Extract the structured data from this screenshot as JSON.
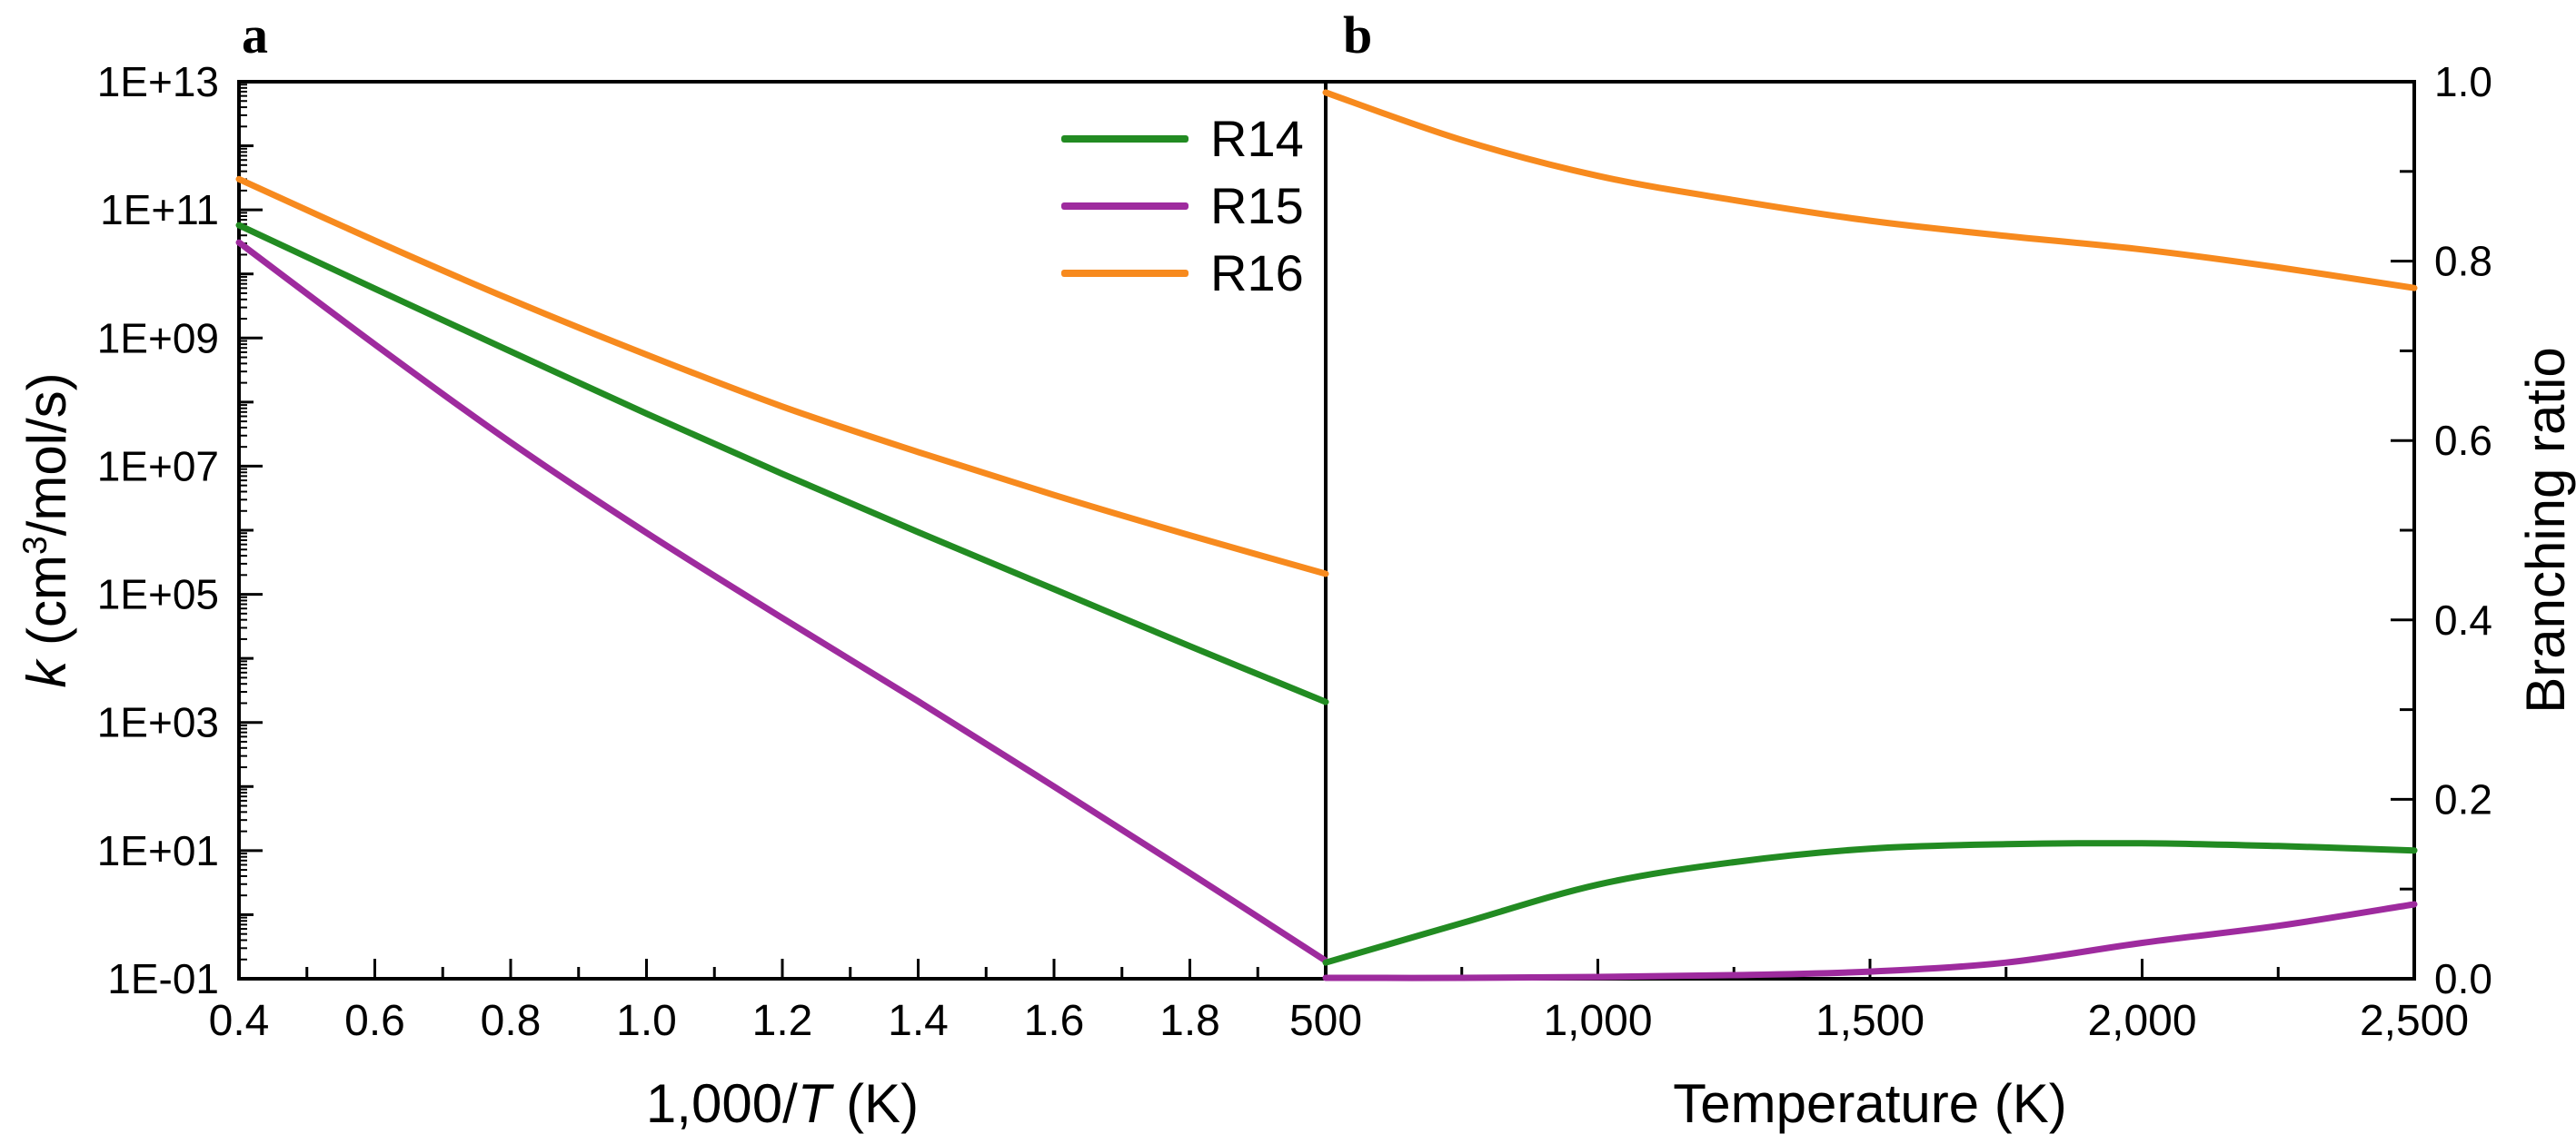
{
  "figure": {
    "background": "#ffffff",
    "axis_color": "#000000",
    "text_color": "#000000"
  },
  "panel_a": {
    "letter": "a",
    "xlabel": {
      "pre": "1,000/",
      "italic": "T",
      "post": " (K)"
    },
    "ylabel": {
      "k": "k",
      "mid": " (cm",
      "sup": "3",
      "end": "/mol/s)"
    }
  },
  "panel_b": {
    "letter": "b",
    "xlabel": "Temperature (K)",
    "ylabel": "Branching ratio"
  },
  "legend": {
    "position": "top-right-of-panel-a",
    "items": [
      {
        "label": "R14",
        "color": "#228B22"
      },
      {
        "label": "R15",
        "color": "#9E2B9E"
      },
      {
        "label": "R16",
        "color": "#F78A1E"
      }
    ]
  },
  "chart_data": [
    {
      "id": "panel_a",
      "type": "line",
      "title": "a",
      "xlabel": "1,000/T (K)",
      "ylabel": "k (cm³/mol/s)",
      "x_axis": {
        "lim": [
          0.4,
          2.0
        ],
        "major_tick_step": 0.2,
        "minor_tick_step": 0.1,
        "tick_values": [
          0.4,
          0.6,
          0.8,
          1.0,
          1.2,
          1.4,
          1.6,
          1.8
        ],
        "tick_labels": [
          "0.4",
          "0.6",
          "0.8",
          "1.0",
          "1.2",
          "1.4",
          "1.6",
          "1.8"
        ]
      },
      "y_axis": {
        "scale": "log10",
        "side": "left",
        "lim_exponents": [
          -1,
          13
        ],
        "tick_exponents": [
          13,
          11,
          9,
          7,
          5,
          3,
          1,
          -1
        ],
        "tick_labels": [
          "1E+13",
          "1E+11",
          "1E+09",
          "1E+07",
          "1E+05",
          "1E+03",
          "1E+01",
          "1E-01"
        ],
        "minor_log_ticks": true
      },
      "grid": false,
      "legend_position": "upper right",
      "x": [
        0.4,
        0.6,
        0.8,
        1.0,
        1.2,
        1.4,
        1.6,
        1.8,
        2.0
      ],
      "series": [
        {
          "name": "R14",
          "color": "#228B22",
          "log10_k": [
            10.76,
            9.77,
            8.79,
            7.82,
            6.88,
            5.97,
            5.08,
            4.19,
            3.32
          ]
        },
        {
          "name": "R15",
          "color": "#9E2B9E",
          "log10_k": [
            10.49,
            8.9,
            7.37,
            5.96,
            4.63,
            3.33,
            2.0,
            0.65,
            -0.72
          ]
        },
        {
          "name": "R16",
          "color": "#F78A1E",
          "log10_k": [
            11.48,
            10.52,
            9.6,
            8.74,
            7.93,
            7.22,
            6.55,
            5.92,
            5.32
          ]
        }
      ]
    },
    {
      "id": "panel_b",
      "type": "line",
      "title": "b",
      "xlabel": "Temperature (K)",
      "ylabel": "Branching ratio",
      "x_axis": {
        "lim": [
          500,
          2500
        ],
        "major_tick_step": 500,
        "minor_tick_step": 250,
        "tick_values": [
          500,
          1000,
          1500,
          2000,
          2500
        ],
        "tick_labels": [
          "500",
          "1,000",
          "1,500",
          "2,000",
          "2,500"
        ]
      },
      "y_axis": {
        "scale": "linear",
        "side": "right",
        "lim": [
          0.0,
          1.0
        ],
        "major_tick_step": 0.2,
        "minor_tick_step": 0.1,
        "tick_values": [
          1.0,
          0.8,
          0.6,
          0.4,
          0.2,
          0.0
        ],
        "tick_labels": [
          "1.0",
          "0.8",
          "0.6",
          "0.4",
          "0.2",
          "0.0"
        ]
      },
      "grid": false,
      "x": [
        500,
        750,
        1000,
        1250,
        1500,
        1750,
        2000,
        2250,
        2500
      ],
      "series": [
        {
          "name": "R14",
          "color": "#228B22",
          "y": [
            0.018,
            0.062,
            0.105,
            0.13,
            0.145,
            0.15,
            0.151,
            0.148,
            0.143
          ]
        },
        {
          "name": "R15",
          "color": "#9E2B9E",
          "y": [
            0.001,
            0.001,
            0.002,
            0.004,
            0.008,
            0.018,
            0.04,
            0.059,
            0.083
          ]
        },
        {
          "name": "R16",
          "color": "#F78A1E",
          "y": [
            0.988,
            0.935,
            0.895,
            0.868,
            0.845,
            0.828,
            0.813,
            0.793,
            0.77
          ]
        }
      ]
    }
  ]
}
